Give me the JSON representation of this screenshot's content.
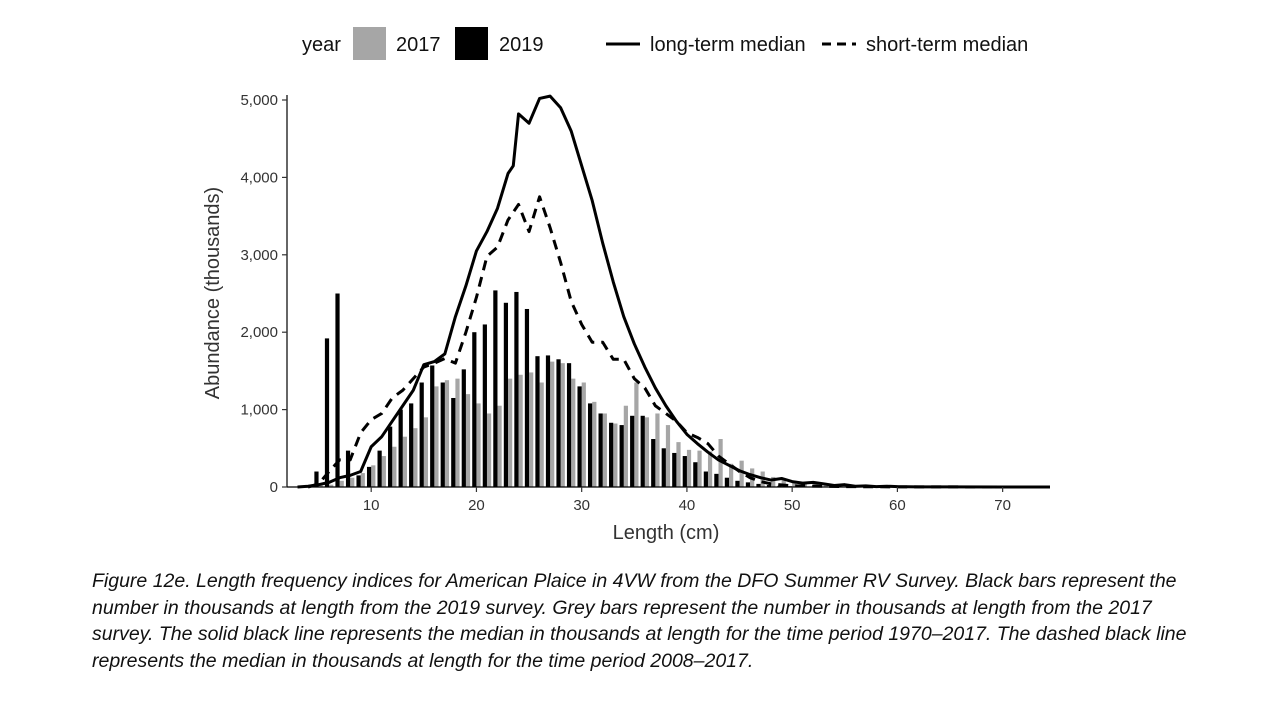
{
  "caption": "Figure 12e. Length frequency indices for American Plaice in 4VW from the DFO Summer RV Survey. Black bars represent the number in thousands at length from the 2019 survey. Grey bars represent the number in thousands at length from the 2017 survey. The solid black line represents the median in thousands at length for the time period 1970–2017. The dashed black line represents the median in thousands at length for the time period 2008–2017.",
  "colors": {
    "grey_bar": "#a6a6a6",
    "black_bar": "#000000",
    "line": "#000000"
  },
  "chart_data": {
    "type": "bar",
    "xlabel": "Length (cm)",
    "ylabel": "Abundance (thousands)",
    "xlim": [
      2,
      74.5
    ],
    "ylim": [
      0,
      5000
    ],
    "x_ticks": [
      10,
      20,
      30,
      40,
      50,
      60,
      70
    ],
    "y_ticks": [
      0,
      1000,
      2000,
      3000,
      4000,
      5000
    ],
    "y_tick_labels": [
      "0",
      "1,000",
      "2,000",
      "3,000",
      "4,000",
      "5,000"
    ],
    "grid": false,
    "legend": {
      "position": "top",
      "title": "year",
      "bar_entries": [
        "2017",
        "2019"
      ],
      "line_entries": [
        "long-term median",
        "short-term median"
      ]
    },
    "lengths": [
      5,
      6,
      7,
      8,
      9,
      10,
      11,
      12,
      13,
      14,
      15,
      16,
      17,
      18,
      19,
      20,
      21,
      22,
      23,
      24,
      25,
      26,
      27,
      28,
      29,
      30,
      31,
      32,
      33,
      34,
      35,
      36,
      37,
      38,
      39,
      40,
      41,
      42,
      43,
      44,
      45,
      46,
      47,
      48,
      49,
      50,
      51,
      52,
      53,
      54,
      55,
      56,
      57,
      58,
      59,
      60,
      61,
      62,
      63,
      64,
      65,
      66,
      67,
      68,
      69,
      70
    ],
    "series": [
      {
        "name": "2017",
        "kind": "bar",
        "values": [
          20,
          30,
          80,
          120,
          180,
          280,
          400,
          520,
          650,
          760,
          900,
          1300,
          1380,
          1400,
          1200,
          1080,
          950,
          1050,
          1400,
          1450,
          1480,
          1350,
          1620,
          1600,
          1400,
          1350,
          1100,
          950,
          820,
          1050,
          1350,
          900,
          950,
          800,
          580,
          480,
          470,
          460,
          620,
          300,
          340,
          240,
          200,
          130,
          110,
          80,
          60,
          40,
          30,
          20,
          15,
          12,
          10,
          8,
          6,
          5,
          4,
          3,
          2,
          2,
          2,
          1,
          1,
          1,
          1,
          1
        ]
      },
      {
        "name": "2019",
        "kind": "bar",
        "values": [
          200,
          1920,
          2500,
          470,
          150,
          260,
          470,
          780,
          1000,
          1080,
          1350,
          1570,
          1350,
          1150,
          1520,
          2000,
          2100,
          2540,
          2380,
          2520,
          2300,
          1690,
          1700,
          1650,
          1600,
          1300,
          1080,
          950,
          830,
          800,
          920,
          920,
          620,
          500,
          440,
          400,
          320,
          200,
          170,
          120,
          80,
          60,
          40,
          25,
          15,
          10,
          8,
          5,
          3,
          2,
          2,
          1,
          1,
          1,
          1,
          1,
          1,
          1,
          1,
          1,
          1,
          1,
          1,
          1,
          1,
          1
        ]
      },
      {
        "name": "long-term median",
        "kind": "line",
        "style": "solid",
        "x": [
          3,
          4,
          5,
          6,
          7,
          8,
          9,
          10,
          11,
          12,
          13,
          14,
          15,
          16,
          17,
          18,
          19,
          20,
          21,
          22,
          23,
          23.5,
          24,
          25,
          26,
          27,
          28,
          29,
          30,
          31,
          32,
          33,
          34,
          35,
          36,
          37,
          38,
          39,
          40,
          41,
          42,
          43,
          44,
          45,
          46,
          47,
          48,
          49,
          50,
          51,
          52,
          53,
          54,
          55,
          56,
          57,
          58,
          59,
          60,
          62,
          65,
          70,
          74.5
        ],
        "y": [
          0,
          10,
          30,
          60,
          120,
          150,
          200,
          520,
          650,
          850,
          1050,
          1250,
          1580,
          1620,
          1720,
          2200,
          2600,
          3050,
          3300,
          3600,
          4050,
          4150,
          4820,
          4700,
          5020,
          5050,
          4900,
          4600,
          4150,
          3700,
          3150,
          2650,
          2200,
          1850,
          1550,
          1280,
          1050,
          850,
          680,
          560,
          450,
          350,
          280,
          210,
          160,
          120,
          90,
          110,
          70,
          50,
          60,
          40,
          20,
          30,
          10,
          15,
          5,
          10,
          5,
          2,
          1,
          0,
          0
        ]
      },
      {
        "name": "short-term median",
        "kind": "line",
        "style": "dashed",
        "x": [
          4,
          5,
          6,
          7,
          8,
          9,
          10,
          11,
          12,
          13,
          14,
          15,
          16,
          17,
          18,
          19,
          20,
          21,
          22,
          23,
          24,
          25,
          26,
          27,
          28,
          29,
          30,
          31,
          32,
          33,
          34,
          35,
          36,
          37,
          38,
          39,
          40,
          41,
          42,
          43,
          44,
          45,
          46,
          47,
          48,
          50,
          55,
          60,
          65,
          70,
          74.5
        ],
        "y": [
          0,
          40,
          200,
          350,
          350,
          700,
          870,
          950,
          1150,
          1250,
          1400,
          1550,
          1600,
          1660,
          1600,
          2000,
          2450,
          2980,
          3100,
          3450,
          3650,
          3300,
          3750,
          3350,
          2900,
          2400,
          2100,
          1870,
          1870,
          1650,
          1650,
          1400,
          1280,
          1050,
          950,
          850,
          700,
          640,
          560,
          400,
          300,
          200,
          120,
          70,
          40,
          15,
          5,
          2,
          1,
          0,
          0
        ]
      }
    ]
  }
}
